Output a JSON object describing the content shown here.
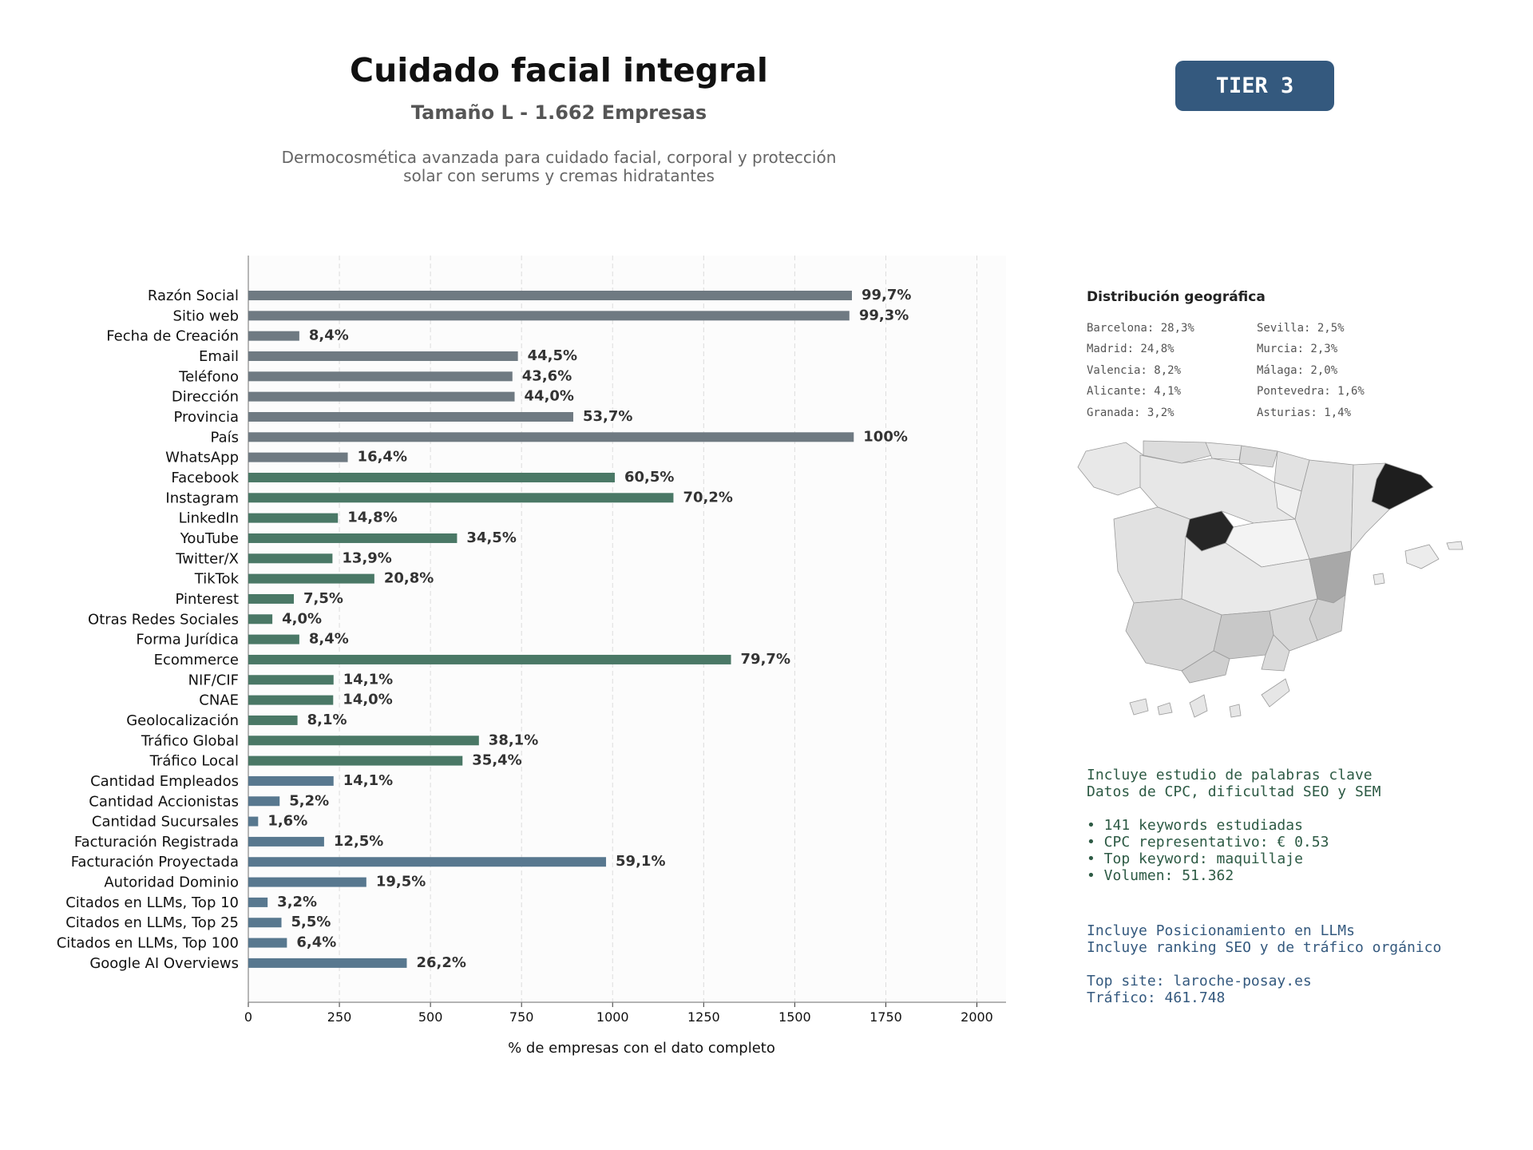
{
  "header": {
    "title": "Cuidado facial integral",
    "subtitle": "Tamaño L - 1.662 Empresas",
    "description": "Dermocosmética avanzada para cuidado facial, corporal y protección\nsolar con serums y cremas hidratantes",
    "tier_badge": "TIER 3"
  },
  "chart_data": {
    "type": "bar",
    "orientation": "horizontal",
    "xlabel": "% de empresas con el dato completo",
    "xlim": [
      0,
      2080
    ],
    "xticks": [
      0,
      250,
      500,
      750,
      1000,
      1250,
      1500,
      1750,
      2000
    ],
    "grid": "vertical dashed",
    "categories": [
      "Razón Social",
      "Sitio web",
      "Fecha de Creación",
      "Email",
      "Teléfono",
      "Dirección",
      "Provincia",
      "País",
      "WhatsApp",
      "Facebook",
      "Instagram",
      "LinkedIn",
      "YouTube",
      "Twitter/X",
      "TikTok",
      "Pinterest",
      "Otras Redes Sociales",
      "Forma Jurídica",
      "Ecommerce",
      "NIF/CIF",
      "CNAE",
      "Geolocalización",
      "Tráfico Global",
      "Tráfico Local",
      "Cantidad Empleados",
      "Cantidad Accionistas",
      "Cantidad Sucursales",
      "Facturación Registrada",
      "Facturación Proyectada",
      "Autoridad Dominio",
      "Citados en LLMs, Top 10",
      "Citados en LLMs, Top 25",
      "Citados en LLMs, Top 100",
      "Google AI Overviews"
    ],
    "values": [
      1657,
      1650,
      140,
      740,
      725,
      731,
      892,
      1662,
      273,
      1006,
      1167,
      246,
      573,
      231,
      346,
      125,
      66,
      140,
      1325,
      234,
      233,
      135,
      633,
      588,
      234,
      86,
      27,
      208,
      982,
      324,
      53,
      91,
      106,
      435
    ],
    "labels": [
      "99,7%",
      "99,3%",
      "8,4%",
      "44,5%",
      "43,6%",
      "44,0%",
      "53,7%",
      "100%",
      "16,4%",
      "60,5%",
      "70,2%",
      "14,8%",
      "34,5%",
      "13,9%",
      "20,8%",
      "7,5%",
      "4,0%",
      "8,4%",
      "79,7%",
      "14,1%",
      "14,0%",
      "8,1%",
      "38,1%",
      "35,4%",
      "14,1%",
      "5,2%",
      "1,6%",
      "12,5%",
      "59,1%",
      "19,5%",
      "3,2%",
      "5,5%",
      "6,4%",
      "26,2%"
    ],
    "groups": [
      "basic",
      "basic",
      "basic",
      "basic",
      "basic",
      "basic",
      "basic",
      "basic",
      "basic",
      "social",
      "social",
      "social",
      "social",
      "social",
      "social",
      "social",
      "social",
      "social",
      "social",
      "social",
      "social",
      "social",
      "social",
      "social",
      "business",
      "business",
      "business",
      "business",
      "business",
      "business",
      "business",
      "business",
      "business",
      "business"
    ],
    "group_colors": {
      "basic": "#6f7a82",
      "social": "#4a7866",
      "business": "#58788f"
    }
  },
  "geo": {
    "title": "Distribución geográfica",
    "left_column": [
      "Barcelona: 28,3%",
      "Madrid: 24,8%",
      "Valencia: 8,2%",
      "Alicante: 4,1%",
      "Granada: 3,2%"
    ],
    "right_column": [
      "Sevilla: 2,5%",
      "Murcia: 2,3%",
      "Málaga: 2,0%",
      "Pontevedra: 1,6%",
      "Asturias: 1,4%"
    ]
  },
  "keywords": {
    "intro": "Incluye estudio de palabras clave\nDatos de CPC, dificultad SEO y SEM",
    "bullets": "• 141 keywords estudiadas\n• CPC representativo: € 0.53\n• Top keyword: maquillaje\n• Volumen: 51.362"
  },
  "llm": {
    "intro": "Incluye Posicionamiento en LLMs\nIncluye ranking SEO y de tráfico orgánico",
    "top_site": "Top site: laroche-posay.es\nTráfico: 461.748"
  }
}
